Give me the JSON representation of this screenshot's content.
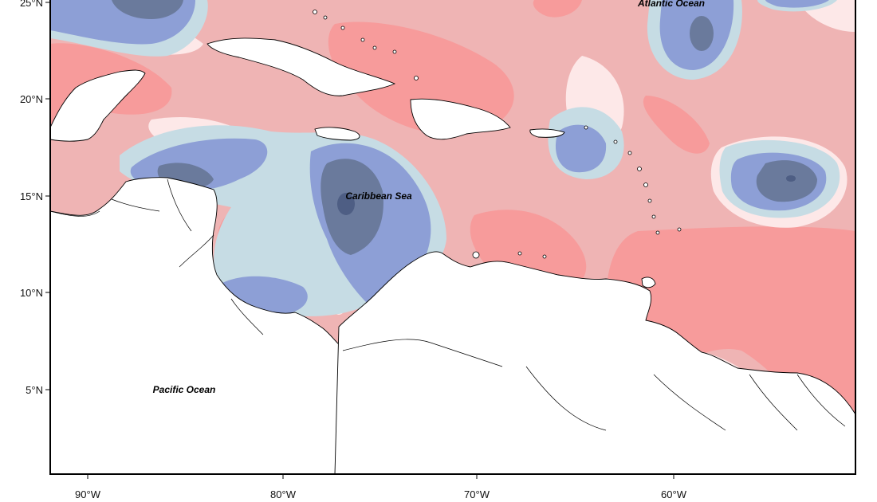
{
  "map": {
    "x_ticks": [
      "90°W",
      "80°W",
      "70°W",
      "60°W"
    ],
    "y_ticks": [
      "25°N",
      "20°N",
      "15°N",
      "10°N",
      "5°N"
    ],
    "labels": {
      "atlantic": "Atlantic Ocean",
      "caribbean": "Caribbean Sea",
      "pacific": "Pacific Ocean"
    },
    "extent": {
      "lon_min": "92°W",
      "lon_max": "51°W",
      "lat_min": "1°N",
      "lat_max": "26°N"
    },
    "colors": {
      "strong_negative": "#6a7a9c",
      "mid_negative": "#8d9fd6",
      "weak_negative": "#c6dce4",
      "near_zero": "#fde8e8",
      "weak_positive": "#f6c6c6",
      "mid_positive": "#efb4b4",
      "strong_positive": "#f79b9b",
      "land": "#ffffff",
      "frame": "#000000"
    }
  }
}
